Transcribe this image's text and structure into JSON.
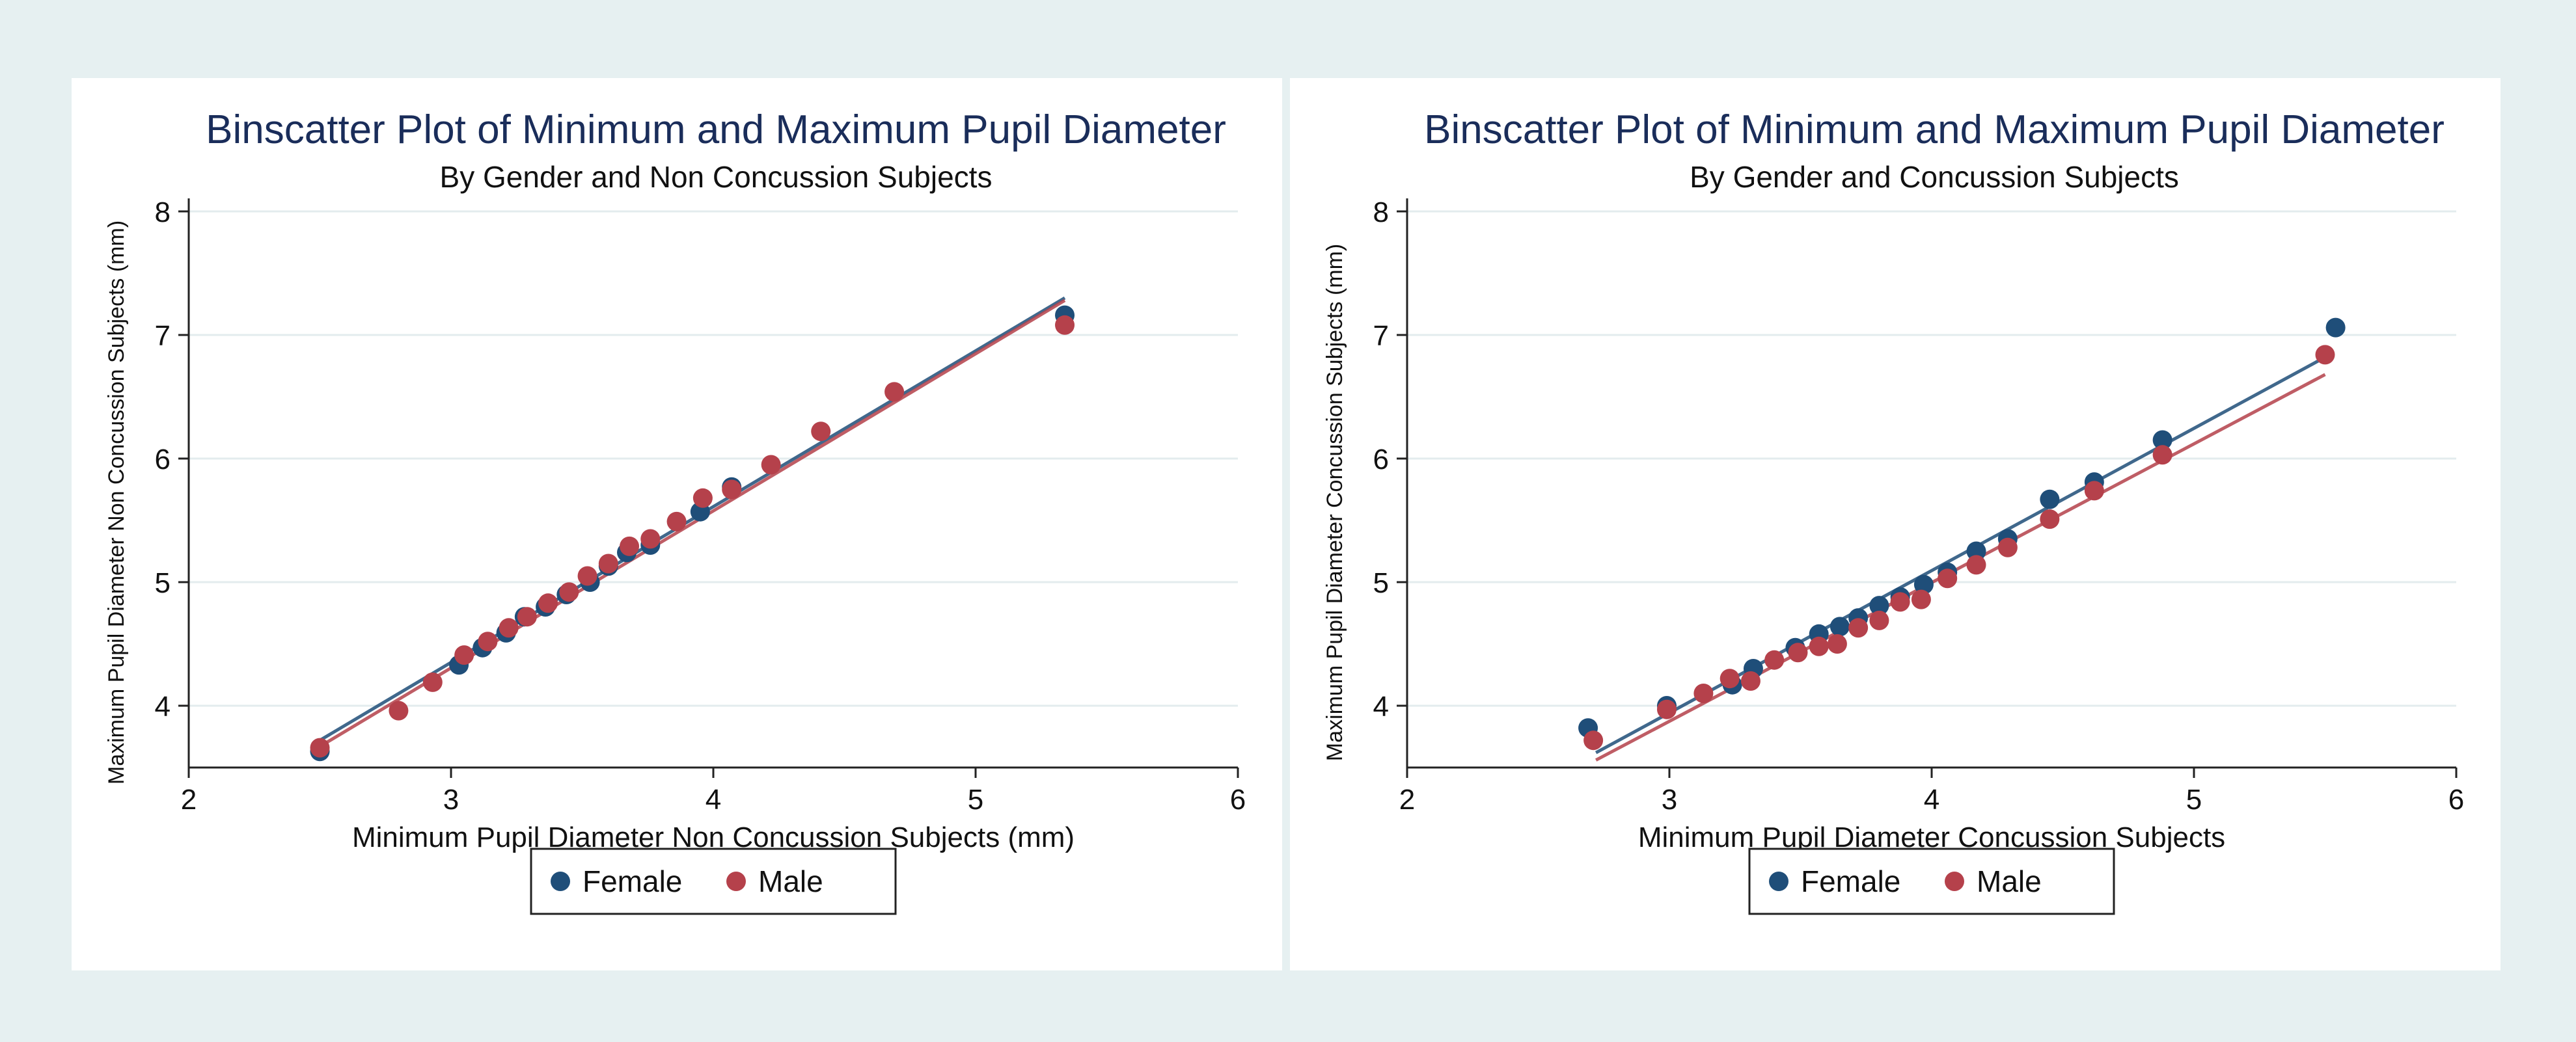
{
  "chart_data": [
    {
      "type": "scatter",
      "title": "Binscatter Plot of Minimum and Maximum Pupil Diameter",
      "subtitle": "By Gender and Non Concussion Subjects",
      "xlabel": "Minimum Pupil Diameter Non Concussion Subjects (mm)",
      "ylabel": "Maximum Pupil Diameter Non Concussion Subjects (mm)",
      "xlim": [
        2,
        6
      ],
      "ylim": [
        3.5,
        8
      ],
      "xticks": [
        2,
        3,
        4,
        5,
        6
      ],
      "yticks": [
        4,
        5,
        6,
        7,
        8
      ],
      "grid": true,
      "legend": "bottom",
      "series": [
        {
          "name": "Female",
          "color": "#1f4e79",
          "points": [
            [
              2.5,
              3.63
            ],
            [
              3.03,
              4.33
            ],
            [
              3.12,
              4.47
            ],
            [
              3.21,
              4.59
            ],
            [
              3.28,
              4.72
            ],
            [
              3.36,
              4.8
            ],
            [
              3.44,
              4.9
            ],
            [
              3.53,
              5.0
            ],
            [
              3.6,
              5.13
            ],
            [
              3.67,
              5.24
            ],
            [
              3.76,
              5.3
            ],
            [
              3.95,
              5.57
            ],
            [
              4.07,
              5.77
            ],
            [
              5.34,
              7.16
            ]
          ],
          "fit": [
            [
              2.5,
              3.72
            ],
            [
              5.34,
              7.3
            ]
          ]
        },
        {
          "name": "Male",
          "color": "#b5414b",
          "points": [
            [
              2.5,
              3.66
            ],
            [
              2.8,
              3.96
            ],
            [
              2.93,
              4.19
            ],
            [
              3.05,
              4.41
            ],
            [
              3.14,
              4.52
            ],
            [
              3.22,
              4.63
            ],
            [
              3.29,
              4.72
            ],
            [
              3.37,
              4.83
            ],
            [
              3.45,
              4.92
            ],
            [
              3.52,
              5.05
            ],
            [
              3.6,
              5.15
            ],
            [
              3.68,
              5.29
            ],
            [
              3.76,
              5.35
            ],
            [
              3.86,
              5.49
            ],
            [
              3.96,
              5.68
            ],
            [
              4.07,
              5.75
            ],
            [
              4.22,
              5.95
            ],
            [
              4.41,
              6.22
            ],
            [
              4.69,
              6.54
            ],
            [
              5.34,
              7.08
            ]
          ],
          "fit": [
            [
              2.5,
              3.67
            ],
            [
              5.34,
              7.28
            ]
          ]
        }
      ]
    },
    {
      "type": "scatter",
      "title": "Binscatter Plot of Minimum and Maximum Pupil Diameter",
      "subtitle": "By Gender and Concussion Subjects",
      "xlabel": "Minimum Pupil Diameter Concussion Subjects",
      "ylabel": "Maximum Pupil Diameter Concussion Subjects (mm)",
      "xlim": [
        2,
        6
      ],
      "ylim": [
        3.5,
        8
      ],
      "xticks": [
        2,
        3,
        4,
        5,
        6
      ],
      "yticks": [
        4,
        5,
        6,
        7,
        8
      ],
      "grid": true,
      "legend": "bottom",
      "series": [
        {
          "name": "Female",
          "color": "#1f4e79",
          "points": [
            [
              2.69,
              3.82
            ],
            [
              2.99,
              4.0
            ],
            [
              3.24,
              4.17
            ],
            [
              3.32,
              4.3
            ],
            [
              3.48,
              4.47
            ],
            [
              3.57,
              4.58
            ],
            [
              3.65,
              4.64
            ],
            [
              3.72,
              4.71
            ],
            [
              3.8,
              4.81
            ],
            [
              3.88,
              4.88
            ],
            [
              3.97,
              4.98
            ],
            [
              4.06,
              5.08
            ],
            [
              4.17,
              5.25
            ],
            [
              4.29,
              5.35
            ],
            [
              4.45,
              5.67
            ],
            [
              4.62,
              5.81
            ],
            [
              4.88,
              6.15
            ],
            [
              5.54,
              7.06
            ]
          ],
          "fit": [
            [
              2.72,
              3.62
            ],
            [
              5.5,
              6.82
            ]
          ]
        },
        {
          "name": "Male",
          "color": "#b5414b",
          "points": [
            [
              2.71,
              3.72
            ],
            [
              2.99,
              3.97
            ],
            [
              3.13,
              4.1
            ],
            [
              3.23,
              4.22
            ],
            [
              3.31,
              4.2
            ],
            [
              3.4,
              4.37
            ],
            [
              3.49,
              4.43
            ],
            [
              3.57,
              4.48
            ],
            [
              3.64,
              4.5
            ],
            [
              3.72,
              4.63
            ],
            [
              3.8,
              4.69
            ],
            [
              3.88,
              4.84
            ],
            [
              3.96,
              4.86
            ],
            [
              4.06,
              5.03
            ],
            [
              4.17,
              5.14
            ],
            [
              4.29,
              5.28
            ],
            [
              4.45,
              5.51
            ],
            [
              4.62,
              5.74
            ],
            [
              4.88,
              6.03
            ],
            [
              5.5,
              6.84
            ]
          ],
          "fit": [
            [
              2.72,
              3.56
            ],
            [
              5.5,
              6.68
            ]
          ]
        }
      ]
    }
  ]
}
